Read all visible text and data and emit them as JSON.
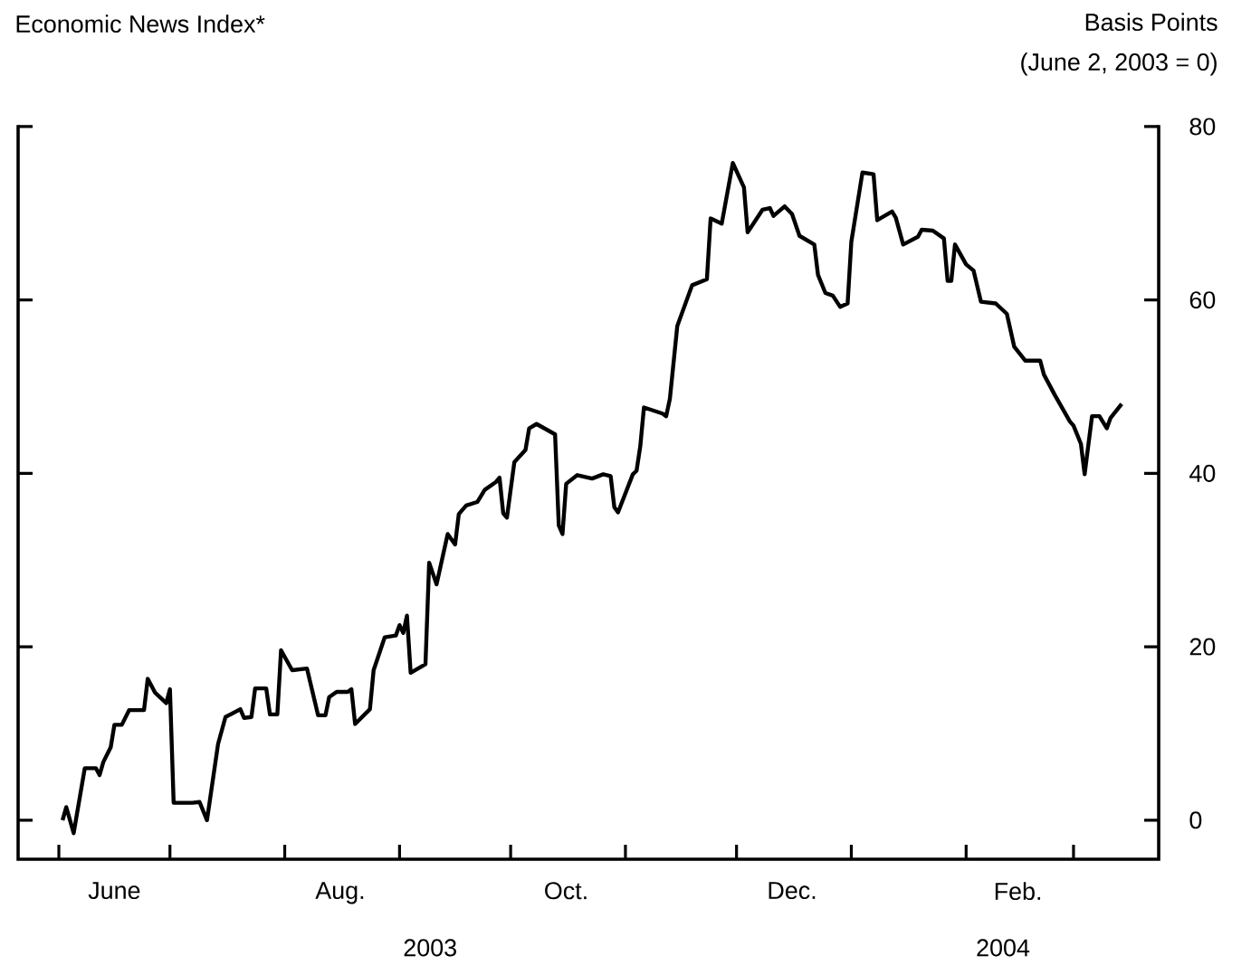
{
  "chart_data": {
    "type": "line",
    "title": "Economic News Index*",
    "annotations": [
      "Basis Points",
      "(June 2, 2003 = 0)",
      "2003",
      "2004"
    ],
    "x": [
      "2003-06-02",
      "2003-06-03",
      "2003-06-05",
      "2003-06-08",
      "2003-06-11",
      "2003-06-12",
      "2003-06-13",
      "2003-06-15",
      "2003-06-16",
      "2003-06-18",
      "2003-06-20",
      "2003-06-24",
      "2003-06-25",
      "2003-06-27",
      "2003-06-30",
      "2003-07-01",
      "2003-07-02",
      "2003-07-07",
      "2003-07-09",
      "2003-07-11",
      "2003-07-14",
      "2003-07-16",
      "2003-07-20",
      "2003-07-21",
      "2003-07-23",
      "2003-07-24",
      "2003-07-27",
      "2003-07-28",
      "2003-07-30",
      "2003-07-31",
      "2003-08-03",
      "2003-08-07",
      "2003-08-10",
      "2003-08-12",
      "2003-08-13",
      "2003-08-15",
      "2003-08-18",
      "2003-08-19",
      "2003-08-20",
      "2003-08-24",
      "2003-08-25",
      "2003-08-28",
      "2003-08-31",
      "2003-09-01",
      "2003-09-02",
      "2003-09-03",
      "2003-09-04",
      "2003-09-08",
      "2003-09-09",
      "2003-09-11",
      "2003-09-14",
      "2003-09-16",
      "2003-09-17",
      "2003-09-19",
      "2003-09-22",
      "2003-09-24",
      "2003-09-27",
      "2003-09-28",
      "2003-09-29",
      "2003-09-30",
      "2003-10-02",
      "2003-10-05",
      "2003-10-06",
      "2003-10-08",
      "2003-10-13",
      "2003-10-14",
      "2003-10-15",
      "2003-10-16",
      "2003-10-19",
      "2003-10-23",
      "2003-10-26",
      "2003-10-28",
      "2003-10-29",
      "2003-10-30",
      "2003-11-03",
      "2003-11-04",
      "2003-11-05",
      "2003-11-06",
      "2003-11-11",
      "2003-11-12",
      "2003-11-13",
      "2003-11-15",
      "2003-11-19",
      "2003-11-23",
      "2003-11-24",
      "2003-11-27",
      "2003-11-30",
      "2003-12-03",
      "2003-12-04",
      "2003-12-08",
      "2003-12-10",
      "2003-12-11",
      "2003-12-14",
      "2003-12-16",
      "2003-12-18",
      "2003-12-22",
      "2003-12-23",
      "2003-12-25",
      "2003-12-27",
      "2003-12-29",
      "2003-12-31",
      "2004-01-01",
      "2004-01-04",
      "2004-01-07",
      "2004-01-08",
      "2004-01-12",
      "2004-01-13",
      "2004-01-15",
      "2004-01-19",
      "2004-01-20",
      "2004-01-23",
      "2004-01-26",
      "2004-01-27",
      "2004-01-28",
      "2004-01-29",
      "2004-02-01",
      "2004-02-03",
      "2004-02-05",
      "2004-02-09",
      "2004-02-12",
      "2004-02-14",
      "2004-02-17",
      "2004-02-21",
      "2004-02-22",
      "2004-02-25",
      "2004-02-29",
      "2004-03-01",
      "2004-03-03",
      "2004-03-04",
      "2004-03-06",
      "2004-03-08",
      "2004-03-10",
      "2004-03-11",
      "2004-03-14"
    ],
    "values": [
      0,
      1.5,
      -1.5,
      6,
      6,
      5.2,
      6.7,
      8.4,
      11,
      11,
      12.7,
      12.7,
      16.3,
      14.7,
      13.5,
      15.1,
      2,
      2,
      2.1,
      0,
      8.8,
      11.9,
      12.8,
      11.8,
      11.9,
      15.2,
      15.2,
      12.2,
      12.2,
      19.6,
      17.3,
      17.5,
      12.1,
      12.1,
      14.2,
      14.8,
      14.8,
      15.1,
      11.1,
      12.8,
      17.3,
      21.1,
      21.3,
      22.5,
      21.6,
      23.6,
      17,
      18,
      29.7,
      27.2,
      33,
      31.8,
      35.3,
      36.3,
      36.7,
      38.1,
      39,
      39.5,
      35.4,
      34.9,
      41.3,
      42.7,
      45.2,
      45.7,
      44.5,
      34,
      33,
      38.8,
      39.8,
      39.4,
      39.9,
      39.7,
      36.1,
      35.5,
      39.9,
      40.3,
      43.1,
      47.6,
      46.9,
      46.6,
      48.6,
      57,
      61.7,
      62.4,
      69.4,
      68.8,
      75.8,
      73,
      67.8,
      70.4,
      70.6,
      69.7,
      70.8,
      69.9,
      67.4,
      66.4,
      62.9,
      60.8,
      60.5,
      59.2,
      59.6,
      66.7,
      74.7,
      74.5,
      69.2,
      70.2,
      69.5,
      66.4,
      67.3,
      68.1,
      68,
      67.1,
      62.2,
      62.2,
      66.4,
      64.1,
      63.4,
      59.8,
      59.6,
      58.4,
      54.6,
      53,
      53,
      51.4,
      49,
      46,
      45.5,
      43.4,
      39.9,
      46.6,
      46.6,
      45.2,
      46.4,
      48
    ],
    "color": "#000000",
    "line_style": "solid",
    "xlim": [
      "2003-05-21",
      "2004-03-24"
    ],
    "xticks": [
      {
        "value": "2003-06-01",
        "label": null
      },
      {
        "value": "2003-06-16",
        "label": "June"
      },
      {
        "value": "2003-07-01",
        "label": null
      },
      {
        "value": "2003-08-01",
        "label": null
      },
      {
        "value": "2003-08-16",
        "label": "Aug."
      },
      {
        "value": "2003-09-01",
        "label": null
      },
      {
        "value": "2003-10-01",
        "label": null
      },
      {
        "value": "2003-10-16",
        "label": "Oct."
      },
      {
        "value": "2003-11-01",
        "label": null
      },
      {
        "value": "2003-12-01",
        "label": null
      },
      {
        "value": "2003-12-16",
        "label": "Dec."
      },
      {
        "value": "2004-01-01",
        "label": null
      },
      {
        "value": "2004-02-01",
        "label": null
      },
      {
        "value": "2004-02-15",
        "label": "Feb."
      },
      {
        "value": "2004-03-01",
        "label": null
      }
    ],
    "ylim": [
      -4.5,
      80
    ],
    "yticks": [
      0,
      20,
      40,
      60,
      80
    ]
  }
}
